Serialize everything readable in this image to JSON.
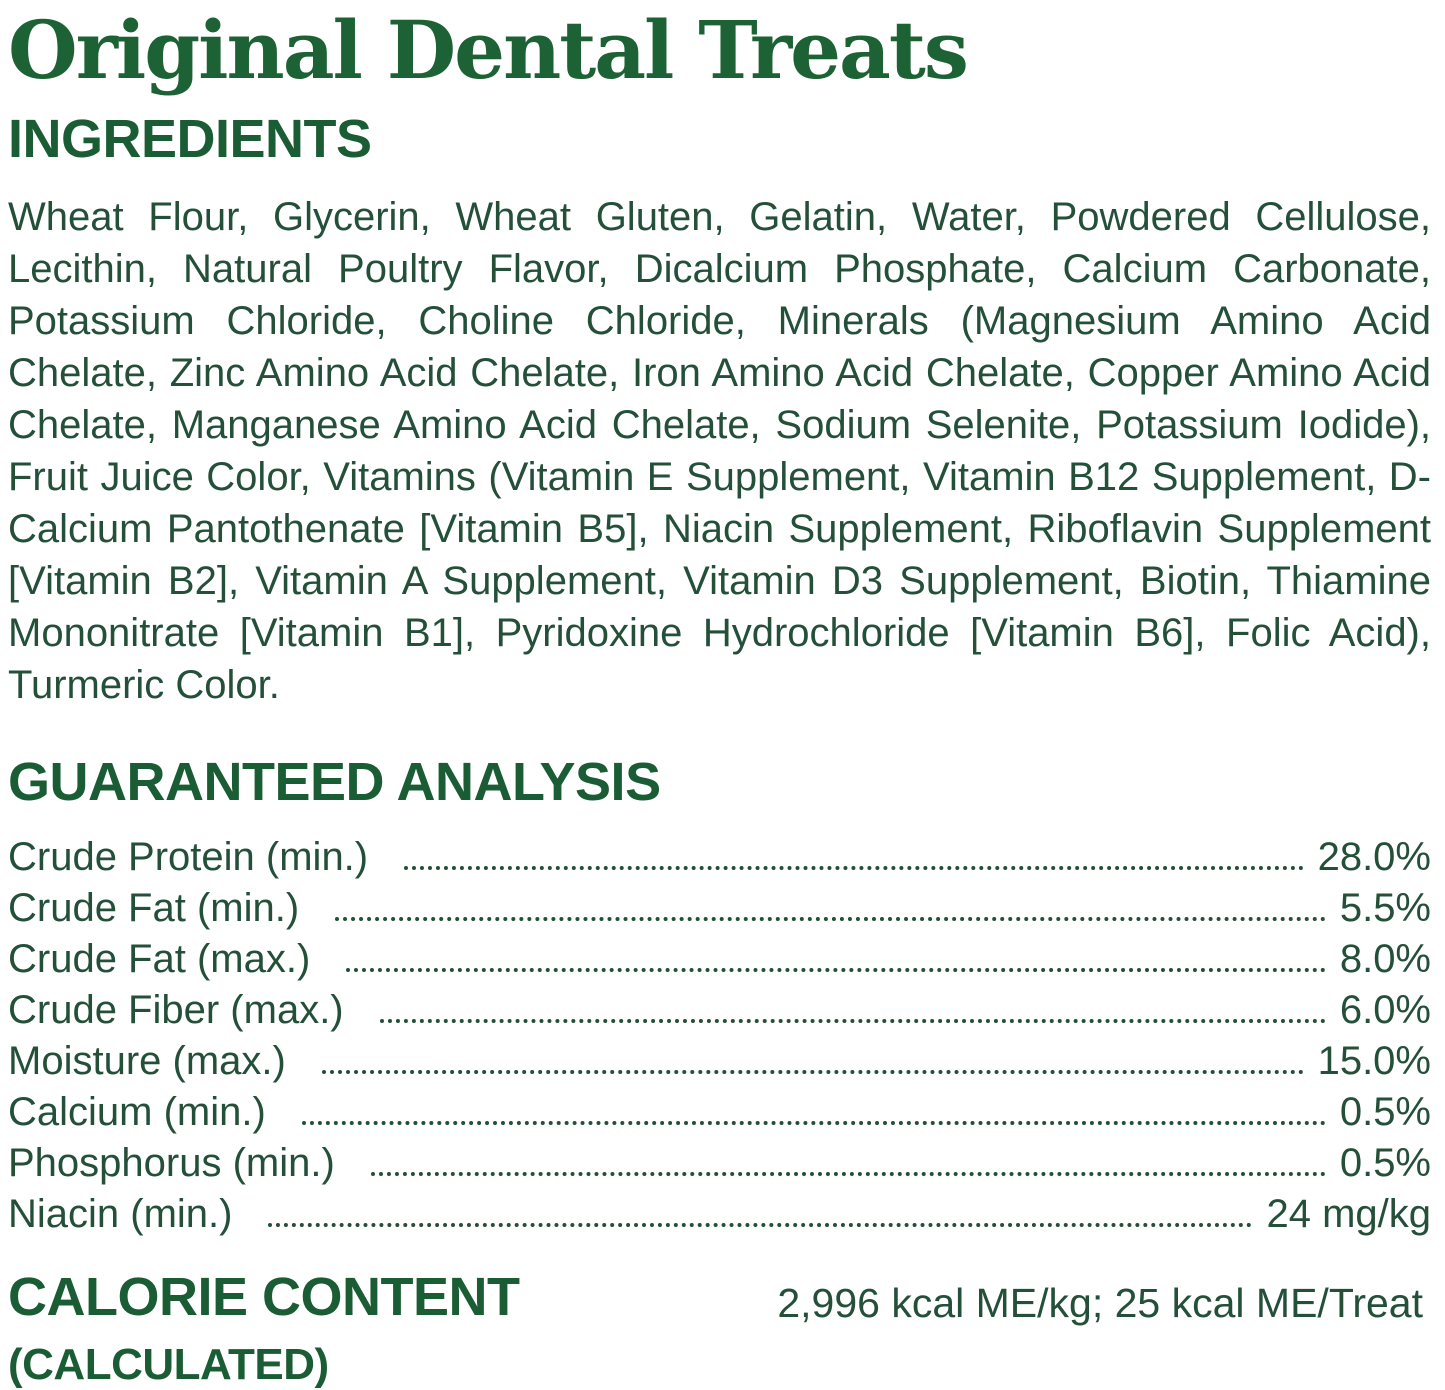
{
  "title": "Original Dental Treats",
  "ingredients": {
    "heading": "INGREDIENTS",
    "text": "Wheat Flour, Glycerin, Wheat Gluten, Gelatin, Water, Powdered Cellulose, Lecithin, Natural Poultry Flavor, Dicalcium Phosphate, Calcium Carbonate, Potassium Chloride, Choline Chloride, Minerals (Magnesium Amino Acid Chelate, Zinc Amino Acid Chelate, Iron Amino Acid Chelate, Copper Amino Acid Chelate, Manganese Amino Acid Chelate, Sodium Selenite, Potassium Iodide), Fruit Juice Color, Vitamins (Vitamin E Supplement, Vitamin B12 Supplement, D-Calcium Pantothenate [Vitamin B5], Niacin Supplement, Riboflavin Supplement [Vitamin B2], Vitamin A Supplement, Vitamin D3 Supplement, Biotin, Thiamine Mononitrate [Vitamin B1], Pyridoxine Hydrochloride [Vitamin B6], Folic Acid), Turmeric Color."
  },
  "analysis": {
    "heading": "GUARANTEED ANALYSIS",
    "rows": [
      {
        "name": "Crude Protein (min.)",
        "value": "28.0%"
      },
      {
        "name": "Crude Fat (min.)",
        "value": "5.5%"
      },
      {
        "name": "Crude Fat (max.)",
        "value": "8.0%"
      },
      {
        "name": "Crude Fiber (max.)",
        "value": "6.0%"
      },
      {
        "name": "Moisture (max.)",
        "value": "15.0%"
      },
      {
        "name": "Calcium (min.)",
        "value": "0.5%"
      },
      {
        "name": "Phosphorus (min.)",
        "value": "0.5%"
      },
      {
        "name": "Niacin (min.)",
        "value": "24 mg/kg"
      }
    ]
  },
  "calories": {
    "heading": "CALORIE CONTENT",
    "subheading": "(CALCULATED)",
    "value": "2,996 kcal ME/kg; 25 kcal ME/Treat"
  },
  "colors": {
    "title_green": "#1d6234",
    "heading_green": "#1a5c33",
    "body_green": "#24503a"
  }
}
